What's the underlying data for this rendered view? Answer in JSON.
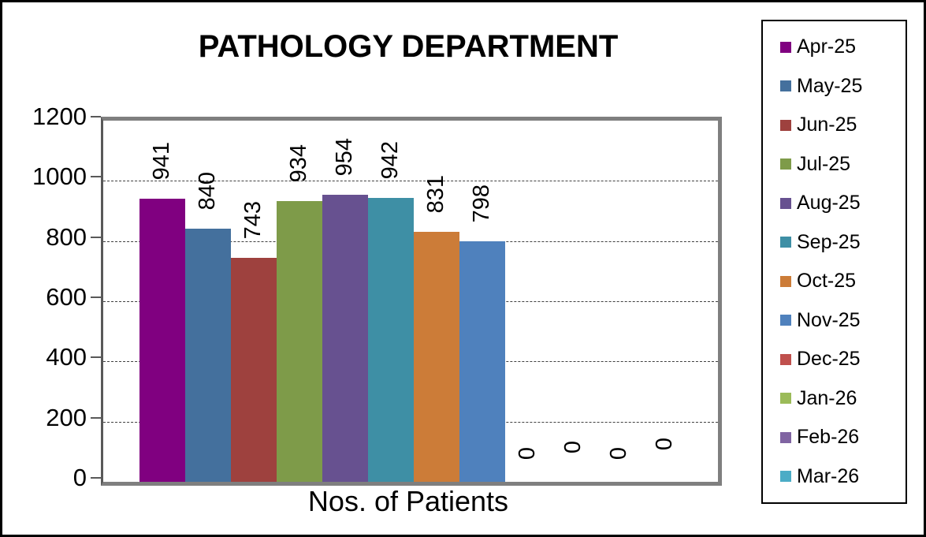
{
  "chart_data": {
    "type": "bar",
    "title": "PATHOLOGY DEPARTMENT",
    "xlabel": "Nos. of Patients",
    "ylabel": "",
    "ylim": [
      0,
      1200
    ],
    "yticks": [
      0,
      200,
      400,
      600,
      800,
      1000,
      1200
    ],
    "grid": true,
    "gridline_style": "dashed",
    "legend_position": "right",
    "data_label_rotation": 90,
    "categories": [
      "Apr-25",
      "May-25",
      "Jun-25",
      "Jul-25",
      "Aug-25",
      "Sep-25",
      "Oct-25",
      "Nov-25",
      "Dec-25",
      "Jan-26",
      "Feb-26",
      "Mar-26"
    ],
    "values": [
      941,
      840,
      743,
      934,
      954,
      942,
      831,
      798,
      0,
      0,
      0,
      0
    ],
    "colors": [
      "#800080",
      "#44709D",
      "#9E413E",
      "#7E9B49",
      "#675190",
      "#3E8FA5",
      "#CC7C38",
      "#4F81BD",
      "#C0504D",
      "#9BBB59",
      "#8064A2",
      "#4BACC6"
    ]
  }
}
